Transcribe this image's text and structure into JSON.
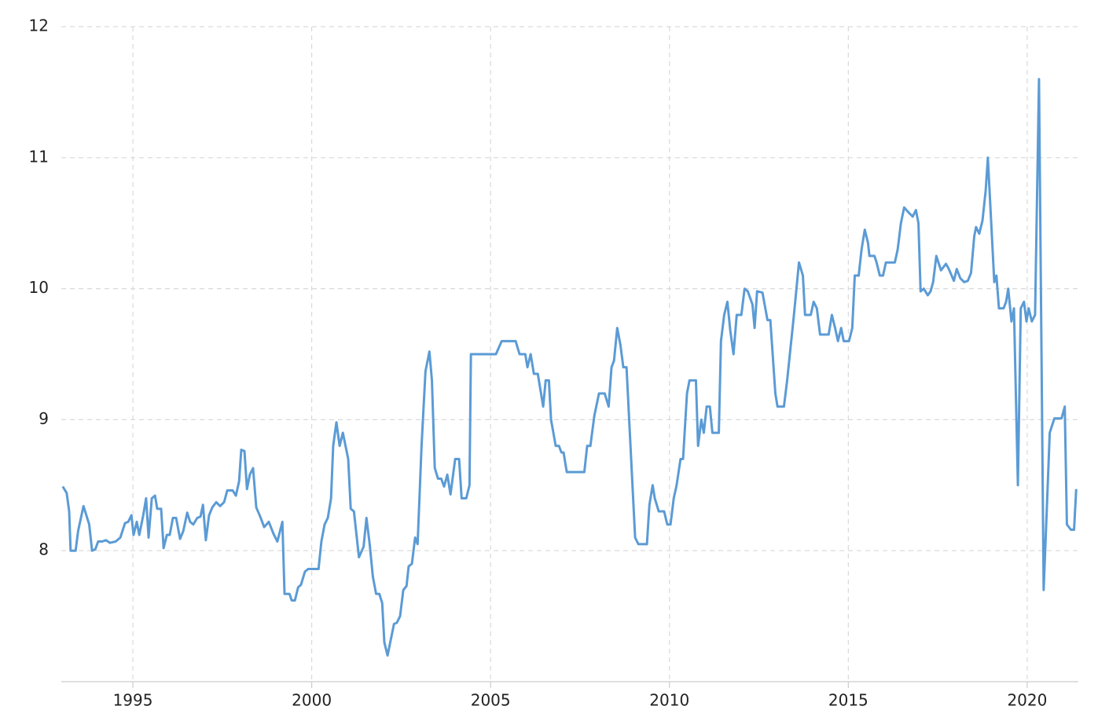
{
  "chart_data": {
    "type": "line",
    "color": "#5b9bd5",
    "grid": true,
    "xlim": [
      1993,
      2021.43
    ],
    "xticks": [
      1995,
      2000,
      2005,
      2010,
      2015,
      2020
    ],
    "ylim": [
      7,
      12
    ],
    "yticks": [
      8,
      9,
      10,
      11,
      12
    ],
    "x": [
      1993.04,
      1993.15,
      1993.22,
      1993.26,
      1993.4,
      1993.47,
      1993.62,
      1993.78,
      1993.86,
      1993.95,
      1994.03,
      1994.14,
      1994.25,
      1994.36,
      1994.52,
      1994.65,
      1994.78,
      1994.87,
      1994.96,
      1995.02,
      1995.11,
      1995.18,
      1995.29,
      1995.37,
      1995.44,
      1995.53,
      1995.62,
      1995.68,
      1995.79,
      1995.86,
      1995.95,
      1996.03,
      1996.12,
      1996.21,
      1996.32,
      1996.41,
      1996.52,
      1996.6,
      1996.69,
      1996.8,
      1996.89,
      1996.96,
      1997.04,
      1997.13,
      1997.22,
      1997.33,
      1997.44,
      1997.55,
      1997.64,
      1997.79,
      1997.88,
      1997.97,
      1998.03,
      1998.12,
      1998.19,
      1998.27,
      1998.36,
      1998.45,
      1998.56,
      1998.67,
      1998.8,
      1998.93,
      1999.04,
      1999.18,
      1999.24,
      1999.38,
      1999.44,
      1999.53,
      1999.62,
      1999.7,
      1999.81,
      1999.9,
      2000.03,
      2000.19,
      2000.27,
      2000.36,
      2000.45,
      2000.54,
      2000.6,
      2000.69,
      2000.78,
      2000.87,
      2001.02,
      2001.09,
      2001.18,
      2001.32,
      2001.45,
      2001.53,
      2001.62,
      2001.71,
      2001.8,
      2001.89,
      2001.97,
      2002.03,
      2002.12,
      2002.3,
      2002.38,
      2002.47,
      2002.56,
      2002.65,
      2002.71,
      2002.8,
      2002.89,
      2002.96,
      2003.07,
      2003.18,
      2003.29,
      2003.36,
      2003.44,
      2003.53,
      2003.62,
      2003.7,
      2003.79,
      2003.88,
      2004.01,
      2004.12,
      2004.19,
      2004.32,
      2004.41,
      2004.45,
      2005.15,
      2005.31,
      2005.7,
      2005.81,
      2005.97,
      2006.03,
      2006.12,
      2006.21,
      2006.32,
      2006.41,
      2006.47,
      2006.54,
      2006.63,
      2006.69,
      2006.82,
      2006.91,
      2006.98,
      2007.04,
      2007.13,
      2007.62,
      2007.7,
      2007.79,
      2007.9,
      2008.03,
      2008.19,
      2008.3,
      2008.38,
      2008.45,
      2008.54,
      2008.63,
      2008.71,
      2008.8,
      2009.04,
      2009.13,
      2009.37,
      2009.44,
      2009.53,
      2009.59,
      2009.7,
      2009.85,
      2009.94,
      2010.03,
      2010.12,
      2010.2,
      2010.31,
      2010.38,
      2010.49,
      2010.56,
      2010.74,
      2010.8,
      2010.89,
      2010.96,
      2011.04,
      2011.13,
      2011.2,
      2011.38,
      2011.44,
      2011.53,
      2011.62,
      2011.7,
      2011.79,
      2011.88,
      2012.01,
      2012.1,
      2012.19,
      2012.32,
      2012.38,
      2012.45,
      2012.6,
      2012.74,
      2012.82,
      2012.96,
      2013.02,
      2013.2,
      2013.29,
      2013.48,
      2013.62,
      2013.73,
      2013.79,
      2013.95,
      2014.03,
      2014.12,
      2014.21,
      2014.45,
      2014.54,
      2014.63,
      2014.71,
      2014.8,
      2014.87,
      2015.02,
      2015.11,
      2015.18,
      2015.29,
      2015.37,
      2015.46,
      2015.55,
      2015.59,
      2015.73,
      2015.79,
      2015.88,
      2015.97,
      2016.05,
      2016.3,
      2016.38,
      2016.47,
      2016.56,
      2016.69,
      2016.8,
      2016.89,
      2016.96,
      2017.02,
      2017.11,
      2017.22,
      2017.3,
      2017.37,
      2017.46,
      2017.59,
      2017.73,
      2017.81,
      2017.95,
      2018.03,
      2018.13,
      2018.24,
      2018.34,
      2018.43,
      2018.52,
      2018.57,
      2018.66,
      2018.75,
      2018.84,
      2018.9,
      2019.08,
      2019.14,
      2019.21,
      2019.34,
      2019.41,
      2019.47,
      2019.56,
      2019.63,
      2019.74,
      2019.82,
      2019.91,
      2019.98,
      2020.04,
      2020.13,
      2020.22,
      2020.33,
      2020.46,
      2020.56,
      2020.63,
      2020.76,
      2020.96,
      2021.05,
      2021.11,
      2021.22,
      2021.31,
      2021.37
    ],
    "values": [
      8.49,
      8.44,
      8.3,
      8.0,
      8.0,
      8.15,
      8.34,
      8.2,
      8.0,
      8.01,
      8.07,
      8.07,
      8.08,
      8.06,
      8.07,
      8.1,
      8.21,
      8.22,
      8.27,
      8.12,
      8.22,
      8.12,
      8.27,
      8.4,
      8.1,
      8.4,
      8.42,
      8.32,
      8.32,
      8.02,
      8.12,
      8.12,
      8.25,
      8.25,
      8.09,
      8.15,
      8.29,
      8.22,
      8.2,
      8.25,
      8.26,
      8.35,
      8.08,
      8.27,
      8.33,
      8.37,
      8.34,
      8.37,
      8.46,
      8.46,
      8.42,
      8.53,
      8.77,
      8.76,
      8.47,
      8.58,
      8.63,
      8.33,
      8.26,
      8.18,
      8.22,
      8.13,
      8.07,
      8.22,
      7.67,
      7.67,
      7.62,
      7.62,
      7.72,
      7.74,
      7.84,
      7.86,
      7.86,
      7.86,
      8.07,
      8.2,
      8.25,
      8.4,
      8.8,
      8.98,
      8.8,
      8.9,
      8.7,
      8.32,
      8.3,
      7.95,
      8.03,
      8.25,
      8.05,
      7.8,
      7.67,
      7.67,
      7.6,
      7.3,
      7.2,
      7.44,
      7.45,
      7.5,
      7.7,
      7.73,
      7.88,
      7.9,
      8.1,
      8.05,
      8.8,
      9.37,
      9.52,
      9.3,
      8.63,
      8.55,
      8.55,
      8.49,
      8.58,
      8.43,
      8.7,
      8.7,
      8.4,
      8.4,
      8.5,
      9.5,
      9.5,
      9.6,
      9.6,
      9.5,
      9.5,
      9.4,
      9.5,
      9.35,
      9.35,
      9.2,
      9.1,
      9.3,
      9.3,
      9.0,
      8.8,
      8.8,
      8.75,
      8.75,
      8.6,
      8.6,
      8.8,
      8.8,
      9.03,
      9.2,
      9.2,
      9.1,
      9.4,
      9.45,
      9.7,
      9.57,
      9.4,
      9.4,
      8.1,
      8.05,
      8.05,
      8.35,
      8.5,
      8.4,
      8.3,
      8.3,
      8.2,
      8.2,
      8.4,
      8.5,
      8.7,
      8.7,
      9.2,
      9.3,
      9.3,
      8.8,
      9.0,
      8.9,
      9.1,
      9.1,
      8.9,
      8.9,
      9.6,
      9.8,
      9.9,
      9.68,
      9.5,
      9.8,
      9.8,
      10.0,
      9.98,
      9.88,
      9.7,
      9.98,
      9.97,
      9.76,
      9.76,
      9.2,
      9.1,
      9.1,
      9.3,
      9.8,
      10.2,
      10.1,
      9.8,
      9.8,
      9.9,
      9.85,
      9.65,
      9.65,
      9.8,
      9.7,
      9.6,
      9.7,
      9.6,
      9.6,
      9.7,
      10.1,
      10.1,
      10.3,
      10.45,
      10.35,
      10.25,
      10.25,
      10.2,
      10.1,
      10.1,
      10.2,
      10.2,
      10.3,
      10.5,
      10.62,
      10.58,
      10.55,
      10.6,
      10.5,
      9.98,
      10.0,
      9.95,
      9.98,
      10.05,
      10.25,
      10.14,
      10.19,
      10.15,
      10.06,
      10.15,
      10.08,
      10.05,
      10.06,
      10.12,
      10.4,
      10.47,
      10.42,
      10.52,
      10.75,
      11.0,
      10.05,
      10.1,
      9.85,
      9.85,
      9.9,
      10.0,
      9.75,
      9.85,
      8.5,
      9.85,
      9.9,
      9.75,
      9.85,
      9.75,
      9.8,
      11.6,
      7.7,
      8.4,
      8.9,
      9.01,
      9.01,
      9.1,
      8.2,
      8.16,
      8.16,
      8.47
    ]
  }
}
